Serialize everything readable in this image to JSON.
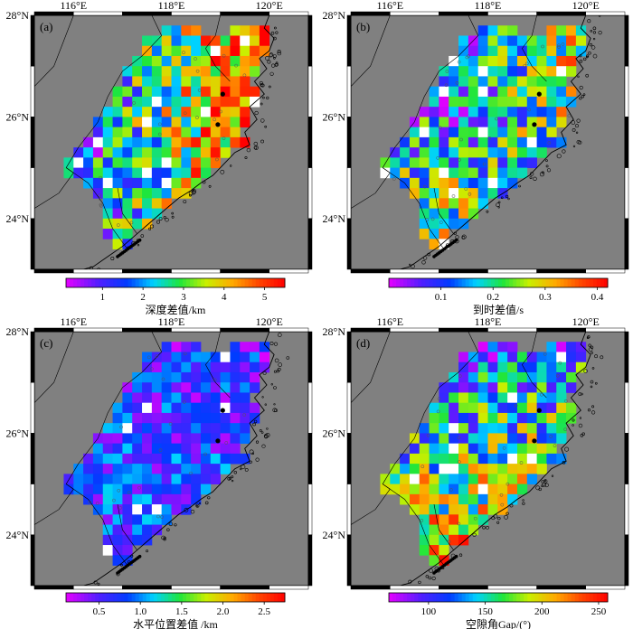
{
  "figure": {
    "lon_ticks": [
      "116°E",
      "118°E",
      "120°E"
    ],
    "lat_ticks": [
      "28°N",
      "26°N",
      "24°N"
    ],
    "extent": {
      "lon_min": 115.2,
      "lon_max": 120.8,
      "lat_min": 23.0,
      "lat_max": 28.0
    },
    "ocean_color": "#808080",
    "no_data_color": "#ffffff"
  },
  "panels": [
    {
      "label": "(a)",
      "colorbar_label": "深度差值/km",
      "colorbar_ticks": [
        "1",
        "2",
        "3",
        "4",
        "5"
      ],
      "colorbar_min": 0.1,
      "colorbar_max": 5.5,
      "tick_values": [
        1,
        2,
        3,
        4,
        5
      ],
      "palette": "rainbow",
      "trend": "high-east",
      "seed": 11
    },
    {
      "label": "(b)",
      "colorbar_label": "到时差值/s",
      "colorbar_ticks": [
        "0.1",
        "0.2",
        "0.3",
        "0.4"
      ],
      "colorbar_min": 0.0,
      "colorbar_max": 0.42,
      "tick_values": [
        0.1,
        0.2,
        0.3,
        0.4
      ],
      "palette": "rainbow",
      "trend": "mixed",
      "seed": 23
    },
    {
      "label": "(c)",
      "colorbar_label": "水平位置差值 /km",
      "colorbar_ticks": [
        "0.5",
        "1.0",
        "1.5",
        "2.0",
        "2.5"
      ],
      "colorbar_min": 0.1,
      "colorbar_max": 2.75,
      "tick_values": [
        0.5,
        1.0,
        1.5,
        2.0,
        2.5
      ],
      "palette": "rainbow",
      "trend": "low",
      "seed": 37
    },
    {
      "label": "(d)",
      "colorbar_label": "空隙角Gap/(°)",
      "colorbar_ticks": [
        "100",
        "150",
        "200",
        "250"
      ],
      "colorbar_min": 65,
      "colorbar_max": 258,
      "tick_values": [
        100,
        150,
        200,
        250
      ],
      "palette": "rainbow",
      "trend": "high-south",
      "seed": 53
    }
  ]
}
